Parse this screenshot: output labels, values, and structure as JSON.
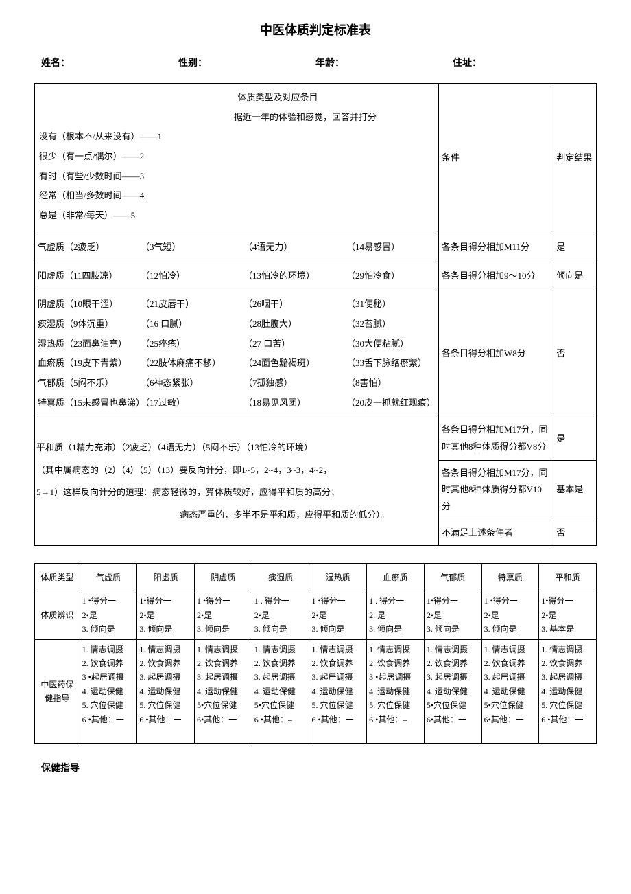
{
  "title": "中医体质判定标准表",
  "info": {
    "name_label": "姓名：",
    "gender_label": "性别：",
    "age_label": "年龄：",
    "address_label": "住址："
  },
  "table1": {
    "header": {
      "line1": "体质类型及对应条目",
      "line2": "据近一年的体验和感觉，回答并打分",
      "scale": [
        "没有（根本不/从来没有）——1",
        "很少（有一点/偶尔）——2",
        "有时（有些/少数时间——3",
        "经常（相当/多数时间——4",
        "总是（非常/每天）——5"
      ],
      "col2": "条件",
      "col3": "判定结果"
    },
    "rows_group1": [
      {
        "c1": "气虚质（2疲乏）",
        "c2": "（3气短）",
        "c3": "（4语无力）",
        "c4": "（14易感冒）",
        "cond": "各条目得分相加M11分",
        "res": "是"
      },
      {
        "c1": "阳虚质（11四肢凉）",
        "c2": "（12怕冷）",
        "c3": "（13怕冷的环境）",
        "c4": "（29怕冷食）",
        "cond": "各条目得分相加9～10分",
        "res": "倾向是"
      }
    ],
    "rows_group2": {
      "items": [
        {
          "c1": "阴虚质（10眼干涩）",
          "c2": "（21皮唇干）",
          "c3": "（26咽干）",
          "c4": "（31便秘）"
        },
        {
          "c1": "痰湿质（9体沉重）",
          "c2": "（16 口腻）",
          "c3": "（28肚腹大）",
          "c4": "（32苔腻）"
        },
        {
          "c1": "湿热质（23面鼻油亮）",
          "c2": "（25痤疮）",
          "c3": "（27 口苦）",
          "c4": "（30大便粘腻）"
        },
        {
          "c1": "血瘀质（19皮下青紫）",
          "c2": "（22肢体麻痛不移）",
          "c3": "（24面色黯褐斑）",
          "c4": "（33舌下脉络瘀紫）"
        },
        {
          "c1": "气郁质（5闷不乐）",
          "c2": "（6神态紧张）",
          "c3": "（7孤独感）",
          "c4": "（8害怕）"
        },
        {
          "c1": "特禀质（15未感冒也鼻涕）",
          "c2": "（17过敏）",
          "c3": "（18易见风团）",
          "c4": "（20皮一抓就红现痕）"
        }
      ],
      "cond": "各条目得分相加W8分",
      "res": "否"
    },
    "pinghe": {
      "lines": [
        "平和质（1精力充沛）（2疲乏）（4语无力）（5闷不乐）（13怕冷的环境）",
        "（其中属病态的（2）（4）（5）（13）要反向计分，即1~5，2~4，3~3，4~2，",
        "5→1）这样反向计分的道理：病态轻微的，算体质较好，应得平和质的高分；",
        "病态严重的，多半不是平和质，应得平和质的低分）。"
      ],
      "conds": [
        {
          "cond": "各条目得分相加M17分，同时其他8种体质得分都V8分",
          "res": "是"
        },
        {
          "cond": "各条目得分相加M17分，同时其他8种体质得分都V10分",
          "res": "基本是"
        },
        {
          "cond": "不满足上述条件者",
          "res": "否"
        }
      ]
    }
  },
  "table2": {
    "row_header": "体质类型",
    "types": [
      "气虚质",
      "阳虚质",
      "阴虚质",
      "痰湿质",
      "湿热质",
      "血瘀质",
      "气郁质",
      "特禀质",
      "平和质"
    ],
    "row2_header": "体质辨识",
    "ident_rows": [
      [
        "1 •得分一",
        "1•得分一",
        "1 •得分一",
        "1 . 得分一",
        "1 •得分一",
        "1 . 得分一",
        "1•得分一",
        "1 •得分一",
        "1•得分一"
      ],
      [
        "2•是",
        "2•是",
        "2•是",
        "2•是",
        "2•是",
        "2. 是",
        "2•是",
        "2•是",
        "2•是"
      ],
      [
        "3. 倾向是",
        "3. 倾向是",
        "3. 倾向是",
        "3. 倾向是",
        "3. 倾向是",
        "3. 倾向是",
        "3. 倾向是",
        "3. 倾向是",
        "3. 基本是"
      ]
    ],
    "row3_header": "中医药保健指导",
    "guide_rows": [
      [
        "1. 情志调摄",
        "1. 情志调摄",
        "1. 情志调摄",
        "1. 情志调摄",
        "1. 情志调摄",
        "1. 情志调摄",
        "1. 情志调摄",
        "1. 情志调摄",
        "1. 情志调摄"
      ],
      [
        "2. 饮食调养",
        "2. 饮食调养",
        "2. 饮食调养",
        "2. 饮食调养",
        "2. 饮食调养",
        "2. 饮食调养",
        "2. 饮食调养",
        "2. 饮食调养",
        "2. 饮食调养"
      ],
      [
        "3 •起居调摄",
        "3. 起居调摄",
        "3. 起居调摄",
        "3. 起居调摄",
        "3. 起居调摄",
        "3 •起居调摄",
        "3. 起居调摄",
        "3. 起居调摄",
        "3. 起居调摄"
      ],
      [
        "4. 运动保健",
        "4. 运动保健",
        "4. 运动保健",
        "4. 运动保健",
        "4. 运动保健",
        "4. 运动保健",
        "4. 运动保健",
        "4. 运动保健",
        "4. 运动保健"
      ],
      [
        "5. 穴位保健",
        "5. 穴位保健",
        "5•穴位保健",
        "5•穴位保健",
        "5. 穴位保健",
        "5. 穴位保健",
        "5•穴位保健",
        "5•穴位保健",
        "5. 穴位保健"
      ],
      [
        "6 •其他：一",
        "6 •其他：一",
        "6•其他：一",
        "6 •其他：–",
        "6 •其他：一",
        "6 •其他：–",
        "6•其他：一",
        "6•其他：一",
        "6 •其他：一"
      ]
    ]
  },
  "footer_label": "保健指导"
}
